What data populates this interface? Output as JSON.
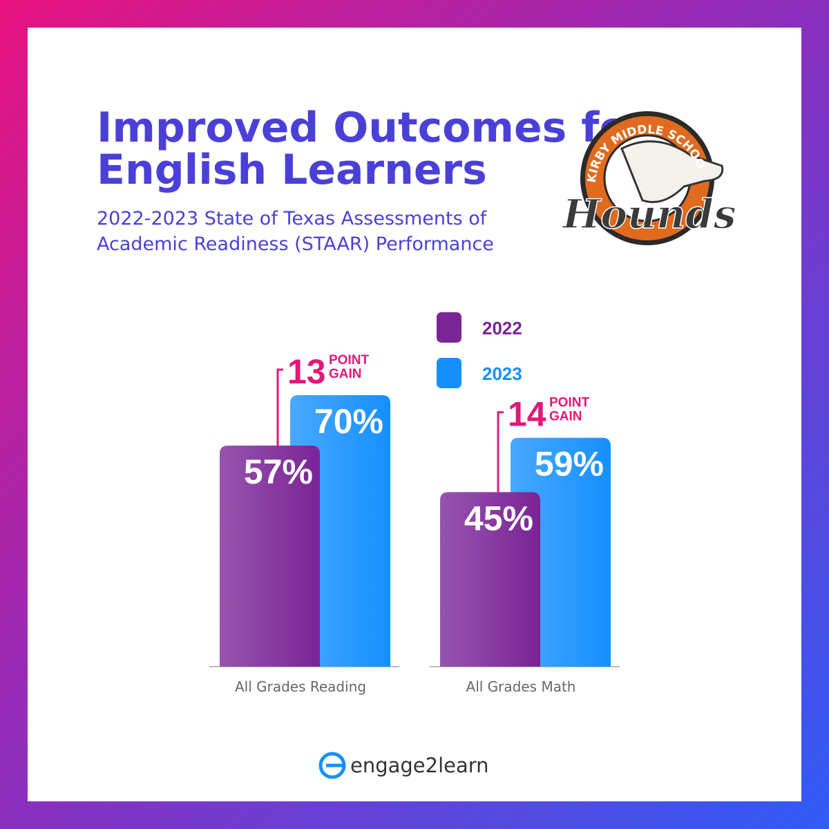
{
  "chart_data": {
    "type": "bar",
    "title": "Improved Outcomes for English Learners",
    "subtitle": "2022-2023 State of Texas Assessments of Academic Readiness (STAAR) Performance",
    "categories": [
      "All Grades Reading",
      "All Grades Math"
    ],
    "series": [
      {
        "name": "2022",
        "color": "#7a2496",
        "values": [
          57,
          45
        ],
        "value_labels": [
          "57%",
          "45%"
        ]
      },
      {
        "name": "2023",
        "color": "#1590ff",
        "values": [
          70,
          59
        ],
        "value_labels": [
          "70%",
          "59%"
        ]
      }
    ],
    "annotations": [
      {
        "value": 13,
        "label": "POINT GAIN",
        "color": "#e0197a"
      },
      {
        "value": 14,
        "label": "POINT GAIN",
        "color": "#e0197a"
      }
    ]
  },
  "logo": {
    "arc_text": "KIRBY MIDDLE SCHOOL",
    "script_text": "Hounds"
  },
  "footer": {
    "brand": "engage2learn"
  }
}
